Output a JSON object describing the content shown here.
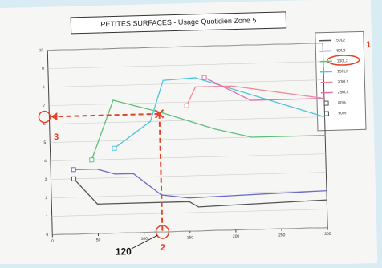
{
  "chart_data": {
    "type": "line",
    "title": "PETITES SURFACES - Usage Quotidien Zone 5",
    "xlim": [
      0,
      300
    ],
    "xticks": [
      0,
      50,
      100,
      150,
      200,
      250,
      300
    ],
    "ylim": [
      0,
      10
    ],
    "yticks": [
      0,
      1,
      2,
      3,
      4,
      5,
      6,
      7,
      8,
      9,
      10
    ],
    "grid": true,
    "legend": "right",
    "series": [
      {
        "name": "50L2",
        "color": "#555555",
        "x": [
          25,
          50,
          150,
          160,
          300
        ],
        "values": [
          3.0,
          1.6,
          1.6,
          1.3,
          1.5
        ]
      },
      {
        "name": "80L2",
        "color": "#6a6ac8",
        "x": [
          25,
          50,
          70,
          90,
          120,
          150,
          300
        ],
        "values": [
          3.5,
          3.5,
          3.2,
          3.2,
          2.0,
          1.8,
          2.0
        ]
      },
      {
        "name": "100L2",
        "color": "#5fbf7a",
        "x": [
          45,
          70,
          120,
          180,
          220,
          300
        ],
        "values": [
          4.0,
          7.2,
          6.5,
          5.5,
          5.0,
          5.0
        ]
      },
      {
        "name": "150L2",
        "color": "#4fc6dc",
        "x": [
          70,
          110,
          125,
          160,
          300
        ],
        "values": [
          4.6,
          6.0,
          8.2,
          8.3,
          6.0
        ]
      },
      {
        "name": "200L2",
        "color": "#f08a9a",
        "x": [
          150,
          160,
          200,
          300
        ],
        "values": [
          6.8,
          7.8,
          7.8,
          7.0
        ]
      },
      {
        "name": "250L2",
        "color": "#e070b0",
        "x": [
          170,
          220,
          300
        ],
        "values": [
          8.3,
          7.0,
          7.0
        ]
      }
    ],
    "marker_legend": [
      "80%",
      "90%"
    ],
    "marker": {
      "x": 120,
      "y": 6.4
    },
    "annotations": [
      "1",
      "2",
      "3",
      "120"
    ]
  }
}
